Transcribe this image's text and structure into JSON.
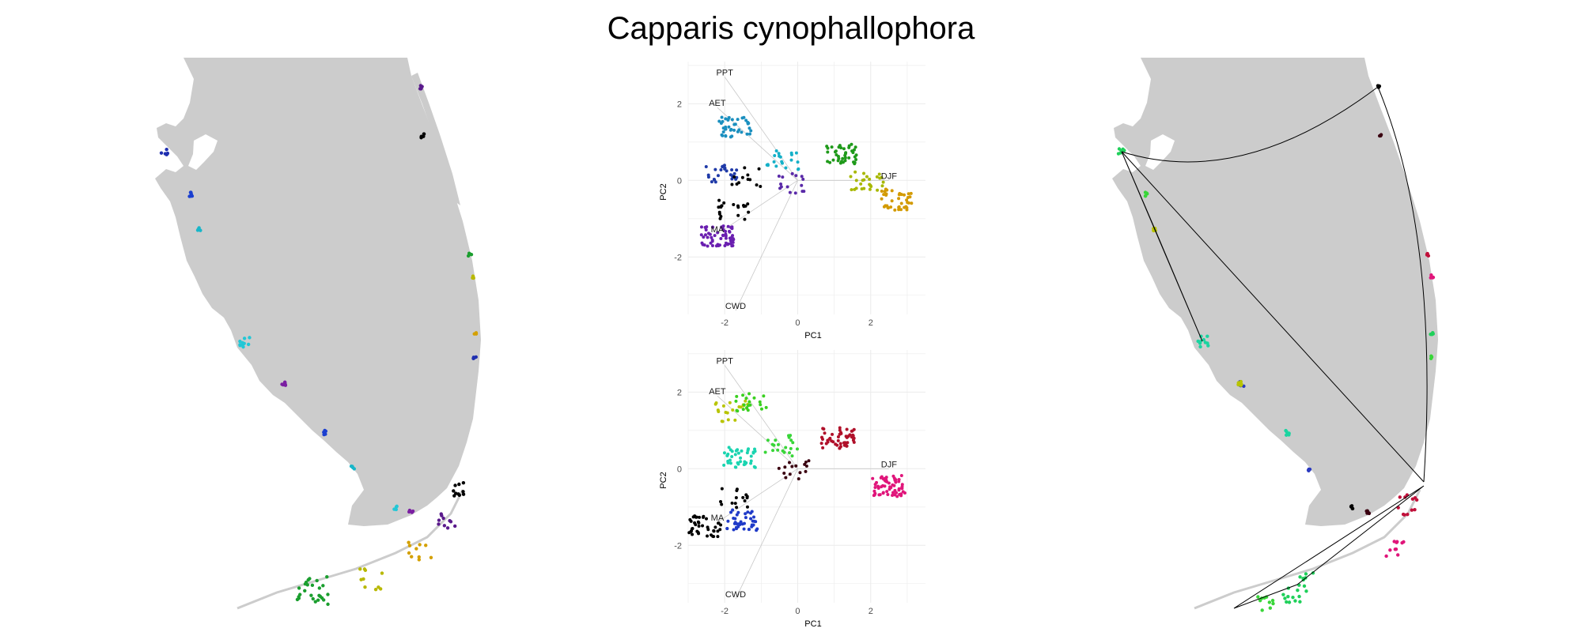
{
  "title": "Capparis cynophallophora",
  "colors": {
    "land": "#cccccc",
    "grid": "#ebebeb",
    "left_map_palette": [
      "#1f2fb0",
      "#1a3fd0",
      "#18b6c9",
      "#22c7d6",
      "#7b1fa2",
      "#5a1a8c",
      "#000000",
      "#1a9e2e",
      "#b8b800",
      "#d4a000"
    ],
    "right_map_palette": [
      "#1fd05a",
      "#39d639",
      "#b8c400",
      "#1ad4a0",
      "#2a3ac0",
      "#000000",
      "#3a0010",
      "#c0103a",
      "#e0157a"
    ]
  },
  "chart_data": [
    {
      "type": "scatter",
      "panel": "pca-top",
      "xlabel": "PC1",
      "ylabel": "PC2",
      "xticks": [
        -2,
        0,
        2
      ],
      "yticks": [
        -2,
        0,
        2
      ],
      "xlim": [
        -3,
        3.5
      ],
      "ylim": [
        -3.5,
        3.1
      ],
      "grid": true,
      "vectors": [
        {
          "label": "PPT",
          "x": -2.0,
          "y": 2.7
        },
        {
          "label": "AET",
          "x": -2.2,
          "y": 1.9
        },
        {
          "label": "DJF",
          "x": 2.5,
          "y": 0.0
        },
        {
          "label": "CWD",
          "x": -1.7,
          "y": -3.4
        },
        {
          "label": "MA",
          "x": -2.2,
          "y": -1.4
        }
      ],
      "clusters": [
        {
          "color": "#1a8fbf",
          "cx": -1.7,
          "cy": 1.4,
          "n": 40
        },
        {
          "color": "#1f3aa8",
          "cx": -2.1,
          "cy": 0.2,
          "n": 25
        },
        {
          "color": "#15b0c8",
          "cx": -0.4,
          "cy": 0.55,
          "n": 20
        },
        {
          "color": "#5a2aa8",
          "cx": -0.25,
          "cy": -0.1,
          "n": 15
        },
        {
          "color": "#6a1fb0",
          "cx": -2.2,
          "cy": -1.45,
          "n": 60
        },
        {
          "color": "#000000",
          "cx": -1.8,
          "cy": -0.75,
          "n": 20
        },
        {
          "color": "#000000",
          "cx": -1.45,
          "cy": 0.1,
          "n": 12
        },
        {
          "color": "#1f9a1a",
          "cx": 1.2,
          "cy": 0.7,
          "n": 40
        },
        {
          "color": "#a8b800",
          "cx": 1.9,
          "cy": 0.0,
          "n": 25
        },
        {
          "color": "#d39a00",
          "cx": 2.7,
          "cy": -0.5,
          "n": 40
        }
      ]
    },
    {
      "type": "scatter",
      "panel": "pca-bottom",
      "xlabel": "PC1",
      "ylabel": "PC2",
      "xticks": [
        -2,
        0,
        2
      ],
      "yticks": [
        -2,
        0,
        2
      ],
      "xlim": [
        -3,
        3.5
      ],
      "ylim": [
        -3.5,
        3.1
      ],
      "grid": true,
      "vectors": [
        {
          "label": "PPT",
          "x": -2.0,
          "y": 2.7
        },
        {
          "label": "AET",
          "x": -2.2,
          "y": 1.9
        },
        {
          "label": "DJF",
          "x": 2.5,
          "y": 0.0
        },
        {
          "label": "CWD",
          "x": -1.7,
          "y": -3.4
        },
        {
          "label": "MA",
          "x": -2.2,
          "y": -1.4
        }
      ],
      "clusters": [
        {
          "color": "#b8c400",
          "cx": -1.8,
          "cy": 1.5,
          "n": 20
        },
        {
          "color": "#3ad020",
          "cx": -1.3,
          "cy": 1.7,
          "n": 20
        },
        {
          "color": "#1ad4b0",
          "cx": -1.6,
          "cy": 0.3,
          "n": 40
        },
        {
          "color": "#39d639",
          "cx": -0.45,
          "cy": 0.6,
          "n": 20
        },
        {
          "color": "#1f3ac8",
          "cx": -1.55,
          "cy": -1.35,
          "n": 40
        },
        {
          "color": "#000000",
          "cx": -2.55,
          "cy": -1.5,
          "n": 40
        },
        {
          "color": "#000000",
          "cx": -1.75,
          "cy": -0.75,
          "n": 15
        },
        {
          "color": "#3a0010",
          "cx": -0.1,
          "cy": 0.0,
          "n": 15
        },
        {
          "color": "#b0102a",
          "cx": 1.1,
          "cy": 0.8,
          "n": 50
        },
        {
          "color": "#e0157a",
          "cx": 2.5,
          "cy": -0.45,
          "n": 60
        }
      ]
    }
  ]
}
